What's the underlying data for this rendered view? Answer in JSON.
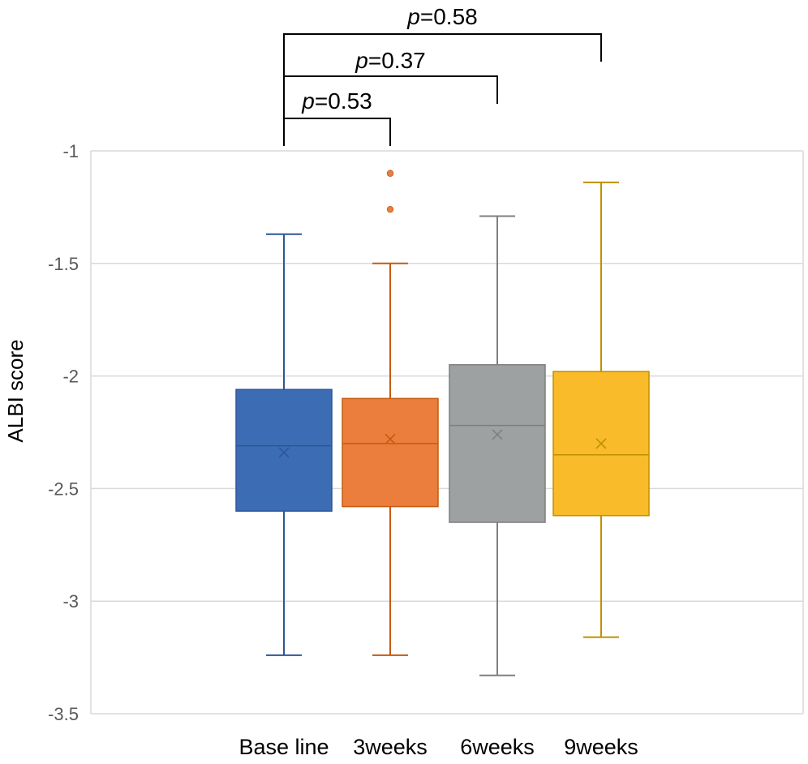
{
  "chart_data": {
    "type": "boxplot",
    "title": "",
    "xlabel": "",
    "ylabel": "ALBI score",
    "ylim": [
      -3.5,
      -1
    ],
    "yticks": [
      -1,
      -1.5,
      -2,
      -2.5,
      -3,
      -3.5
    ],
    "ytick_labels": [
      "-1",
      "-1.5",
      "-2",
      "-2.5",
      "-3",
      "-3.5"
    ],
    "grid": true,
    "categories": [
      "Base line",
      "3weeks",
      "6weeks",
      "9weeks"
    ],
    "series": [
      {
        "category": "Base line",
        "color": "#3C6DB4",
        "stroke": "#2F5597",
        "whisker_low": -3.24,
        "q1": -2.6,
        "median": -2.31,
        "q3": -2.06,
        "whisker_high": -1.37,
        "mean": -2.34,
        "outliers": []
      },
      {
        "category": "3weeks",
        "color": "#EB7E3C",
        "stroke": "#C55A11",
        "whisker_low": -3.24,
        "q1": -2.58,
        "median": -2.3,
        "q3": -2.1,
        "whisker_high": -1.5,
        "mean": -2.28,
        "outliers": [
          -1.1,
          -1.26
        ]
      },
      {
        "category": "6weeks",
        "color": "#9DA1A2",
        "stroke": "#7F7F7F",
        "whisker_low": -3.33,
        "q1": -2.65,
        "median": -2.22,
        "q3": -1.95,
        "whisker_high": -1.29,
        "mean": -2.26,
        "outliers": []
      },
      {
        "category": "9weeks",
        "color": "#F9BB2A",
        "stroke": "#BF9000",
        "whisker_low": -3.16,
        "q1": -2.62,
        "median": -2.35,
        "q3": -1.98,
        "whisker_high": -1.14,
        "mean": -2.3,
        "outliers": []
      }
    ],
    "annotations": [
      {
        "from": "Base line",
        "to": "3weeks",
        "p_symbol": "p",
        "p_value": "=0.53"
      },
      {
        "from": "Base line",
        "to": "6weeks",
        "p_symbol": "p",
        "p_value": "=0.37"
      },
      {
        "from": "Base line",
        "to": "9weeks",
        "p_symbol": "p",
        "p_value": "=0.58"
      }
    ]
  }
}
